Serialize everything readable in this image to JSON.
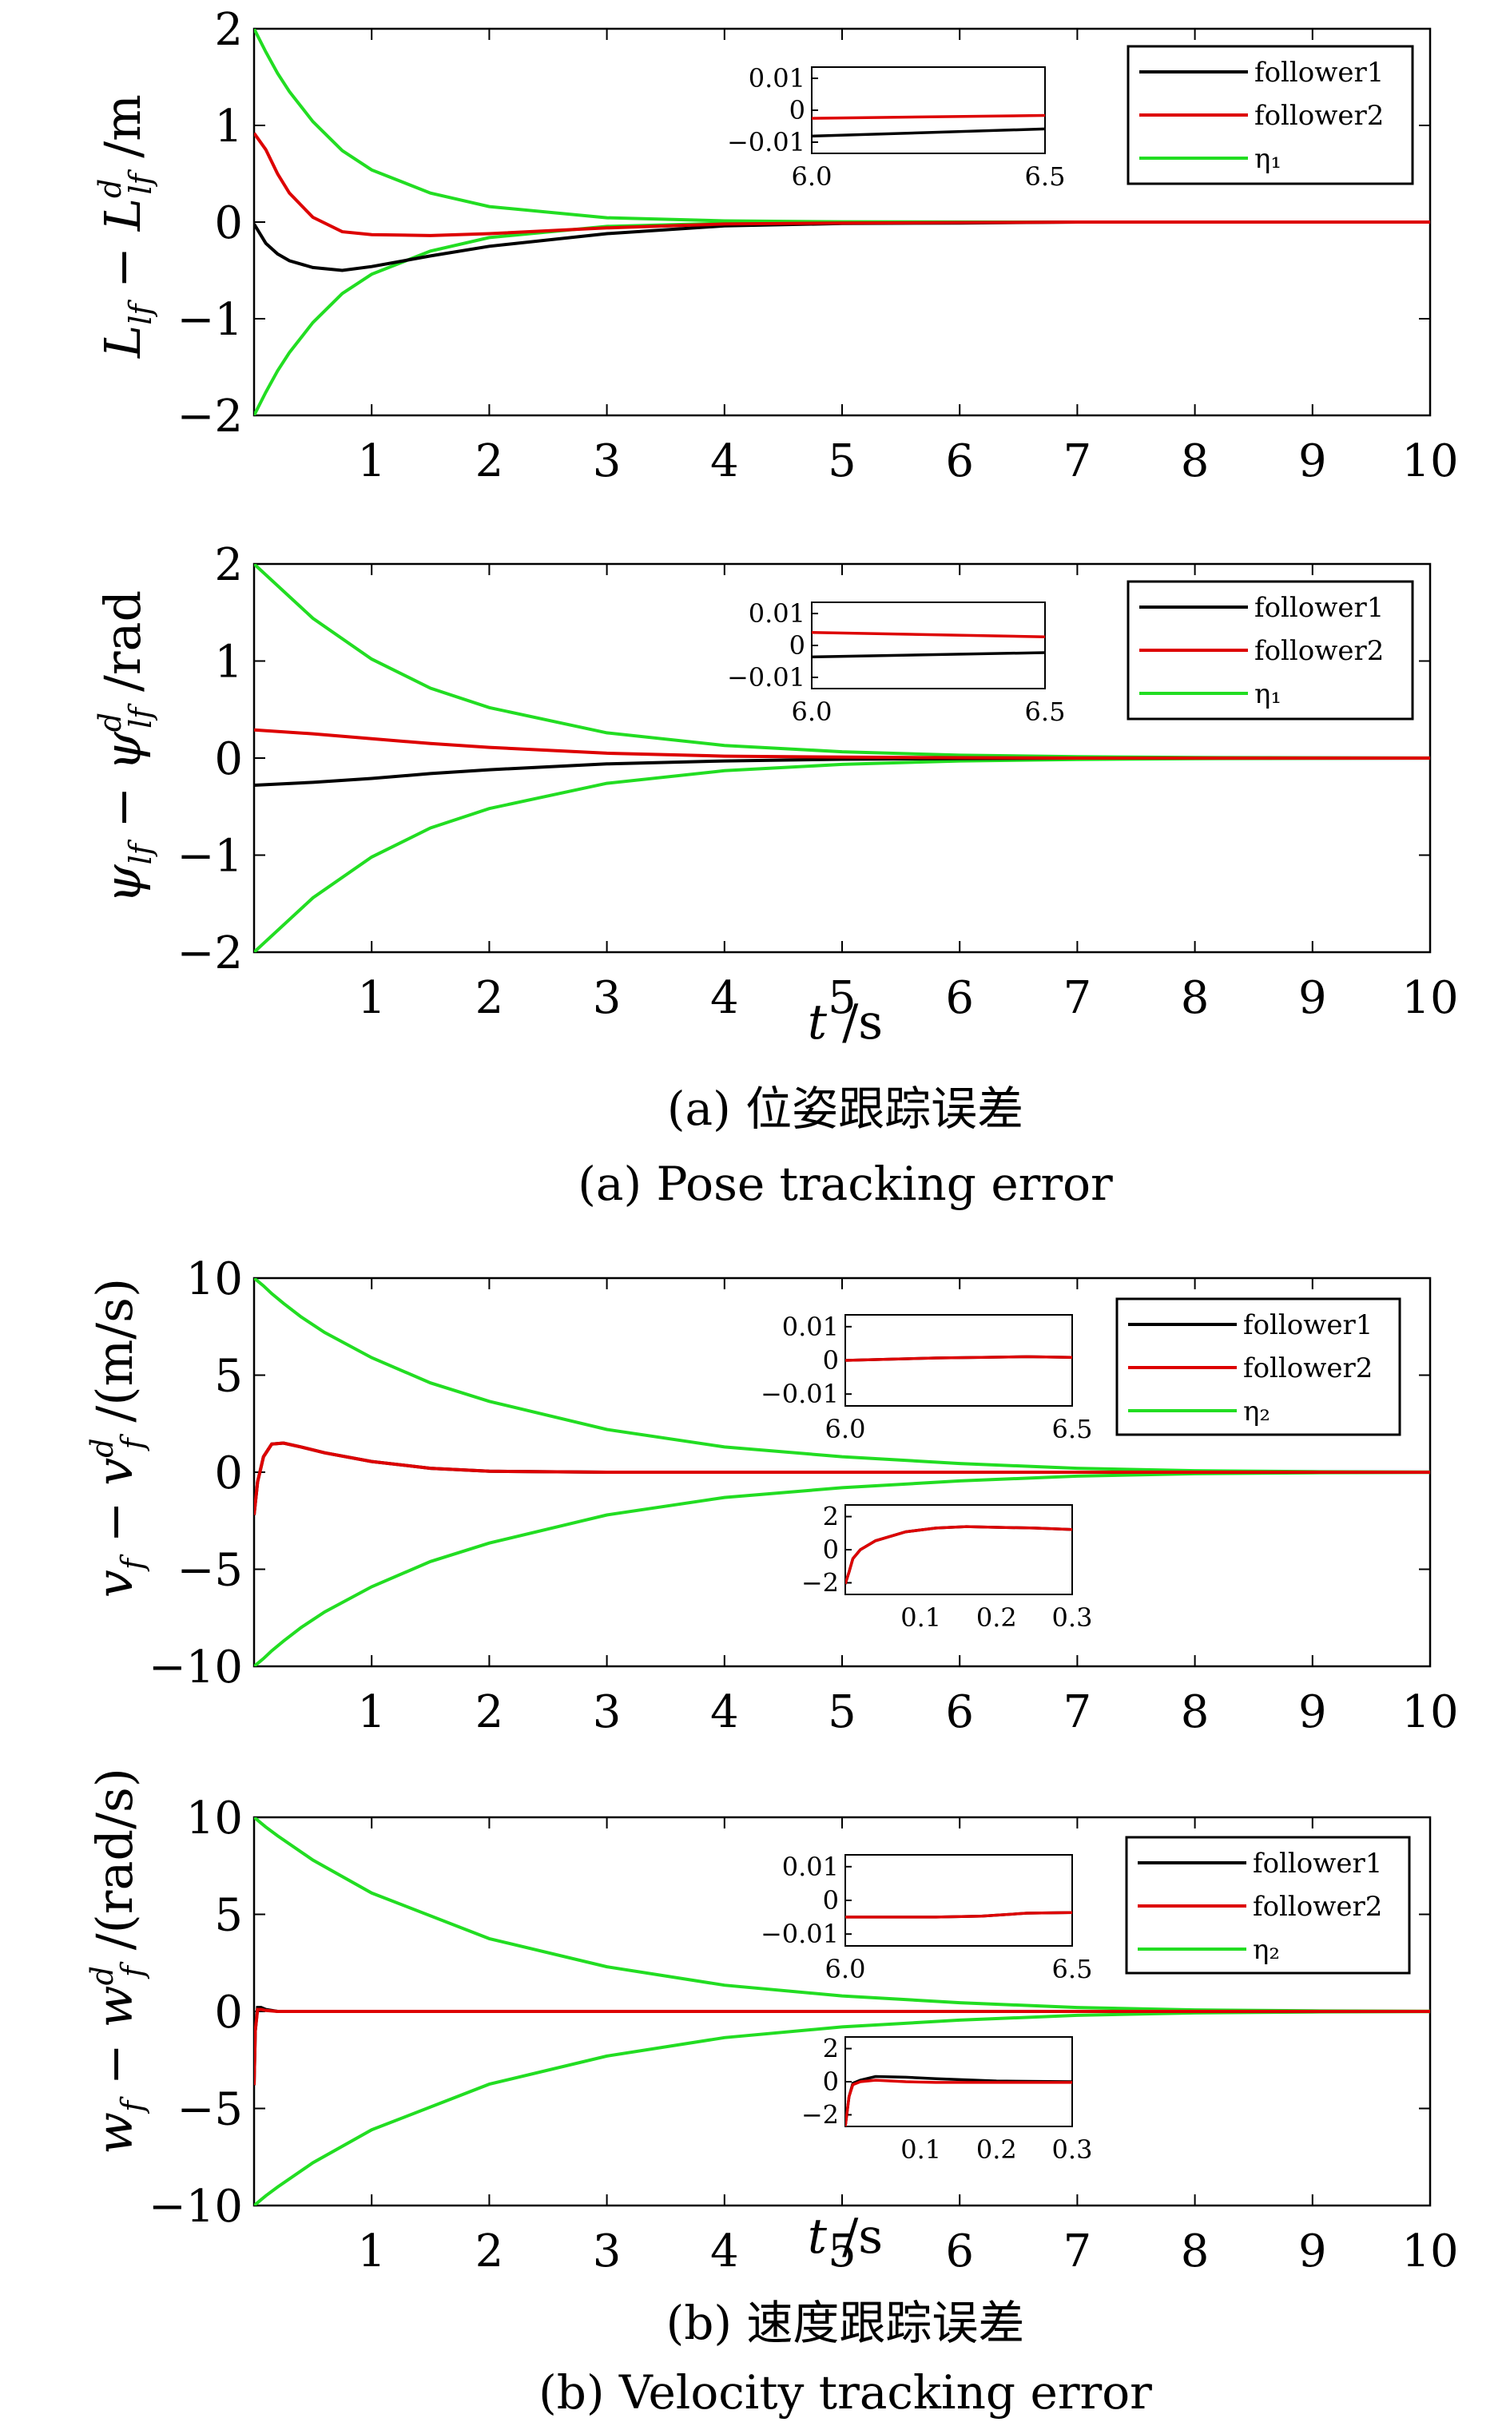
{
  "colors": {
    "follower1": "#000000",
    "follower2": "#dd0000",
    "eta": "#22dd22",
    "axes": "#000000",
    "background": "#ffffff"
  },
  "captions": {
    "a_cn": "(a) 位姿跟踪误差",
    "a_en": "(a) Pose tracking error",
    "b_cn": "(b) 速度跟踪误差",
    "b_en": "(b) Velocity tracking error"
  },
  "chart_data": [
    {
      "type": "line",
      "ylabel": "L_lf − L_lf^d /m",
      "xlabel": "",
      "xlim": [
        0,
        10
      ],
      "ylim": [
        -2,
        2
      ],
      "xticks": [
        1,
        2,
        3,
        4,
        5,
        6,
        7,
        8,
        9,
        10
      ],
      "yticks": [
        -2,
        -1,
        0,
        1,
        2
      ],
      "x": [
        0,
        0.1,
        0.2,
        0.3,
        0.5,
        0.75,
        1.0,
        1.5,
        2,
        3,
        4,
        5,
        6,
        7,
        8,
        9,
        10
      ],
      "series": [
        {
          "name": "follower1",
          "values": [
            -0.02,
            -0.22,
            -0.33,
            -0.4,
            -0.47,
            -0.5,
            -0.46,
            -0.35,
            -0.25,
            -0.12,
            -0.04,
            -0.015,
            -0.01,
            0,
            0,
            0,
            0
          ]
        },
        {
          "name": "follower2",
          "values": [
            0.92,
            0.75,
            0.5,
            0.3,
            0.05,
            -0.1,
            -0.13,
            -0.14,
            -0.12,
            -0.06,
            -0.02,
            -0.01,
            -0.005,
            0,
            0,
            0,
            0
          ]
        },
        {
          "name": "η₁",
          "values": [
            2.0,
            1.76,
            1.54,
            1.35,
            1.04,
            0.74,
            0.54,
            0.3,
            0.16,
            0.045,
            0.012,
            0.003,
            0.001,
            0,
            0,
            0,
            0
          ]
        },
        {
          "name": "η₁",
          "values": [
            -2.0,
            -1.76,
            -1.54,
            -1.35,
            -1.04,
            -0.74,
            -0.54,
            -0.3,
            -0.16,
            -0.045,
            -0.012,
            -0.003,
            -0.001,
            0,
            0,
            0,
            0
          ]
        }
      ],
      "legend": {
        "position": "top-right",
        "entries": [
          "follower1",
          "follower2",
          "η₁"
        ]
      },
      "inset": {
        "xlim": [
          6.0,
          6.5
        ],
        "ylim": [
          -0.015,
          0.015
        ],
        "xticks": [
          "6.0",
          "6.5"
        ],
        "yticks": [
          "0.01",
          "0",
          "−0.01"
        ],
        "x": [
          6.0,
          6.5
        ],
        "series": [
          {
            "name": "follower1",
            "values": [
              -0.009,
              -0.0065
            ]
          },
          {
            "name": "follower2",
            "values": [
              -0.0028,
              -0.0018
            ]
          }
        ]
      }
    },
    {
      "type": "line",
      "ylabel": "ψ_lf − ψ_lf^d /rad",
      "xlabel": "t /s",
      "xlim": [
        0,
        10
      ],
      "ylim": [
        -2,
        2
      ],
      "xticks": [
        1,
        2,
        3,
        4,
        5,
        6,
        7,
        8,
        9,
        10
      ],
      "yticks": [
        -2,
        -1,
        0,
        1,
        2
      ],
      "x": [
        0,
        0.5,
        1,
        1.5,
        2,
        3,
        4,
        5,
        6,
        7,
        8,
        9,
        10
      ],
      "series": [
        {
          "name": "follower1",
          "values": [
            -0.28,
            -0.25,
            -0.21,
            -0.16,
            -0.12,
            -0.06,
            -0.03,
            -0.012,
            -0.005,
            0,
            0,
            0,
            0
          ]
        },
        {
          "name": "follower2",
          "values": [
            0.29,
            0.25,
            0.2,
            0.15,
            0.11,
            0.05,
            0.02,
            0.01,
            0.004,
            0,
            0,
            0,
            0
          ]
        },
        {
          "name": "η₁",
          "values": [
            2.0,
            1.44,
            1.02,
            0.72,
            0.52,
            0.26,
            0.13,
            0.065,
            0.03,
            0.015,
            0.006,
            0.003,
            0.001
          ]
        },
        {
          "name": "η₁",
          "values": [
            -2.0,
            -1.44,
            -1.02,
            -0.72,
            -0.52,
            -0.26,
            -0.13,
            -0.065,
            -0.03,
            -0.015,
            -0.006,
            -0.003,
            -0.001
          ]
        }
      ],
      "legend": {
        "position": "top-right",
        "entries": [
          "follower1",
          "follower2",
          "η₁"
        ]
      },
      "inset": {
        "xlim": [
          6.0,
          6.5
        ],
        "ylim": [
          -0.015,
          0.015
        ],
        "xticks": [
          "6.0",
          "6.5"
        ],
        "yticks": [
          "0.01",
          "0",
          "−0.01"
        ],
        "x": [
          6.0,
          6.5
        ],
        "series": [
          {
            "name": "follower1",
            "values": [
              -0.004,
              -0.0025
            ]
          },
          {
            "name": "follower2",
            "values": [
              0.0045,
              0.003
            ]
          }
        ]
      }
    },
    {
      "type": "line",
      "ylabel": "v_f − v_f^d /(m/s)",
      "xlabel": "",
      "xlim": [
        0,
        10
      ],
      "ylim": [
        -10,
        10
      ],
      "xticks": [
        1,
        2,
        3,
        4,
        5,
        6,
        7,
        8,
        9,
        10
      ],
      "yticks": [
        -10,
        -5,
        0,
        5,
        10
      ],
      "x": [
        0,
        0.03,
        0.08,
        0.15,
        0.25,
        0.4,
        0.6,
        1.0,
        1.5,
        2,
        3,
        4,
        5,
        6,
        7,
        8,
        9,
        10
      ],
      "series": [
        {
          "name": "follower1",
          "values": [
            -2.2,
            -0.5,
            0.8,
            1.45,
            1.5,
            1.3,
            1.0,
            0.55,
            0.2,
            0.05,
            0,
            0,
            0,
            0,
            0,
            0,
            0,
            0
          ]
        },
        {
          "name": "follower2",
          "values": [
            -2.2,
            -0.5,
            0.8,
            1.45,
            1.5,
            1.3,
            1.0,
            0.55,
            0.2,
            0.05,
            0,
            0,
            0,
            0,
            0,
            0,
            0,
            0
          ]
        },
        {
          "name": "η₂",
          "values": [
            10,
            9.85,
            9.6,
            9.2,
            8.7,
            8.0,
            7.2,
            5.9,
            4.6,
            3.65,
            2.2,
            1.3,
            0.8,
            0.45,
            0.2,
            0.08,
            0.03,
            0.01
          ]
        },
        {
          "name": "η₂",
          "values": [
            -10,
            -9.85,
            -9.6,
            -9.2,
            -8.7,
            -8.0,
            -7.2,
            -5.9,
            -4.6,
            -3.65,
            -2.2,
            -1.3,
            -0.8,
            -0.45,
            -0.2,
            -0.08,
            -0.03,
            -0.01
          ]
        }
      ],
      "legend": {
        "position": "top-right",
        "entries": [
          "follower1",
          "follower2",
          "η₂"
        ]
      },
      "inset": {
        "xlim": [
          6.0,
          6.5
        ],
        "ylim": [
          -0.015,
          0.015
        ],
        "xticks": [
          "6.0",
          "6.5"
        ],
        "yticks": [
          "0.01",
          "0",
          "−0.01"
        ],
        "x": [
          6.0,
          6.1,
          6.2,
          6.3,
          6.4,
          6.5
        ],
        "series": [
          {
            "name": "follower1",
            "values": [
              0.0,
              0.0004,
              0.0008,
              0.001,
              0.0012,
              0.001
            ]
          },
          {
            "name": "follower2",
            "values": [
              0.0,
              0.0004,
              0.0008,
              0.001,
              0.0012,
              0.001
            ]
          }
        ]
      },
      "inset2": {
        "xlim": [
          0,
          0.3
        ],
        "ylim": [
          -3,
          3
        ],
        "xticks": [
          "0.1",
          "0.2",
          "0.3"
        ],
        "yticks": [
          "2",
          "0",
          "−2"
        ],
        "x": [
          0.0,
          0.005,
          0.01,
          0.02,
          0.04,
          0.08,
          0.12,
          0.16,
          0.2,
          0.25,
          0.3
        ],
        "series": [
          {
            "name": "follower1",
            "values": [
              -2.3,
              -1.5,
              -0.6,
              0.0,
              0.6,
              1.2,
              1.45,
              1.55,
              1.5,
              1.45,
              1.35
            ]
          },
          {
            "name": "follower2",
            "values": [
              -2.3,
              -1.5,
              -0.6,
              0.0,
              0.6,
              1.2,
              1.45,
              1.55,
              1.5,
              1.45,
              1.35
            ]
          }
        ]
      }
    },
    {
      "type": "line",
      "ylabel": "w_f − w_f^d /(rad/s)",
      "xlabel": "t /s",
      "xlim": [
        0,
        10
      ],
      "ylim": [
        -10,
        10
      ],
      "xticks": [
        1,
        2,
        3,
        4,
        5,
        6,
        7,
        8,
        9,
        10
      ],
      "yticks": [
        -10,
        -5,
        0,
        5,
        10
      ],
      "x": [
        0,
        0.01,
        0.03,
        0.06,
        0.1,
        0.2,
        0.5,
        1,
        2,
        3,
        4,
        5,
        6,
        7,
        8,
        9,
        10
      ],
      "series": [
        {
          "name": "follower1",
          "values": [
            -3.8,
            -1.0,
            0.2,
            0.2,
            0.1,
            0.0,
            0,
            0,
            0,
            0,
            0,
            0,
            0,
            0,
            0,
            0,
            0
          ]
        },
        {
          "name": "follower2",
          "values": [
            -3.8,
            -1.0,
            0.1,
            0.1,
            0.05,
            0.0,
            0,
            0,
            0,
            0,
            0,
            0,
            0,
            0,
            0,
            0,
            0
          ]
        },
        {
          "name": "η₂",
          "values": [
            10,
            9.95,
            9.85,
            9.7,
            9.5,
            9.05,
            7.8,
            6.1,
            3.75,
            2.3,
            1.35,
            0.8,
            0.45,
            0.2,
            0.08,
            0.03,
            0.01
          ]
        },
        {
          "name": "η₂",
          "values": [
            -10,
            -9.95,
            -9.85,
            -9.7,
            -9.5,
            -9.05,
            -7.8,
            -6.1,
            -3.75,
            -2.3,
            -1.35,
            -0.8,
            -0.45,
            -0.2,
            -0.08,
            -0.03,
            -0.01
          ]
        }
      ],
      "legend": {
        "position": "top-right",
        "entries": [
          "follower1",
          "follower2",
          "η₂"
        ]
      },
      "inset": {
        "xlim": [
          6.0,
          6.5
        ],
        "ylim": [
          -0.015,
          0.015
        ],
        "xticks": [
          "6.0",
          "6.5"
        ],
        "yticks": [
          "0.01",
          "0",
          "−0.01"
        ],
        "x": [
          6.0,
          6.1,
          6.2,
          6.3,
          6.4,
          6.5
        ],
        "series": [
          {
            "name": "follower1",
            "values": [
              -0.0055,
              -0.0055,
              -0.0055,
              -0.0052,
              -0.0042,
              -0.004
            ]
          },
          {
            "name": "follower2",
            "values": [
              -0.0055,
              -0.0055,
              -0.0055,
              -0.0052,
              -0.0042,
              -0.004
            ]
          }
        ]
      },
      "inset2": {
        "xlim": [
          0,
          0.3
        ],
        "ylim": [
          -3,
          3
        ],
        "xticks": [
          "0.1",
          "0.2",
          "0.3"
        ],
        "yticks": [
          "2",
          "0",
          "−2"
        ],
        "x": [
          0.0,
          0.005,
          0.01,
          0.02,
          0.04,
          0.08,
          0.12,
          0.2,
          0.3
        ],
        "series": [
          {
            "name": "follower1",
            "values": [
              -3.0,
              -1.0,
              -0.1,
              0.1,
              0.35,
              0.3,
              0.2,
              0.05,
              0.0
            ]
          },
          {
            "name": "follower2",
            "values": [
              -3.0,
              -1.0,
              -0.2,
              0.0,
              0.1,
              0.0,
              -0.05,
              -0.05,
              -0.05
            ]
          }
        ]
      }
    }
  ]
}
